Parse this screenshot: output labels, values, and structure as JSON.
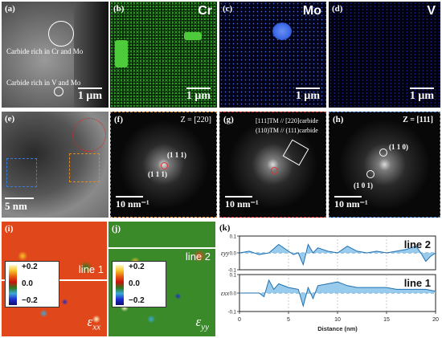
{
  "panels": {
    "a": {
      "label": "(a)",
      "carbide_cr_mo": "Carbide rich in Cr and Mo",
      "carbide_v_mo": "Carbide rich in V and Mo",
      "scalebar": "1 μm"
    },
    "b": {
      "label": "(b)",
      "element": "Cr",
      "scalebar": "1 μm",
      "color": "#2fa82a"
    },
    "c": {
      "label": "(c)",
      "element": "Mo",
      "scalebar": "1 μm",
      "color": "#3b68e8"
    },
    "d": {
      "label": "(d)",
      "element": "V",
      "scalebar": "1 μm",
      "color": "#1d2cd8"
    },
    "e": {
      "label": "(e)",
      "scalebar": "5 nm"
    },
    "f": {
      "label": "(f)",
      "zone": "Z = [220]",
      "spot1": "(1 1 1)",
      "spot2": "(1 1 1)",
      "scalebar": "10 nm⁻¹"
    },
    "g": {
      "label": "(g)",
      "rel1": "[111]TM // [220]carbide",
      "rel2": "(110)TM // (111)carbide",
      "scalebar": "10 nm⁻¹"
    },
    "h": {
      "label": "(h)",
      "zone": "Z = [111]",
      "spot1": "(1 1 0)",
      "spot2": "(1 0 1)",
      "scalebar": "10 nm⁻¹"
    },
    "i": {
      "label": "(i)",
      "line": "line 1",
      "cb_top": "+0.2",
      "cb_mid": "0.0",
      "cb_bot": "−0.2",
      "strain": "ε",
      "strain_sub": "xx"
    },
    "j": {
      "label": "(j)",
      "line": "line 2",
      "cb_top": "+0.2",
      "cb_mid": "0.0",
      "cb_bot": "−0.2",
      "strain": "ε",
      "strain_sub": "yy"
    },
    "k": {
      "label": "(k)"
    }
  },
  "chart_data": {
    "type": "area",
    "xlabel": "Distance (nm)",
    "xlim": [
      0,
      20
    ],
    "xticks": [
      "0",
      "5",
      "10",
      "15",
      "20"
    ],
    "subplots": [
      {
        "name": "line 2",
        "ylabel": "εyy",
        "ylim": [
          -0.1,
          0.1
        ],
        "yticks": [
          "0.1",
          "0.0",
          "-0.1"
        ],
        "x": [
          0,
          1,
          2,
          3,
          4,
          5,
          5.5,
          6,
          6.5,
          7,
          7.5,
          8,
          9,
          10,
          11,
          12,
          13,
          14,
          15,
          16,
          17,
          18,
          18.5,
          19,
          19.5,
          20
        ],
        "y": [
          0.0,
          0.01,
          -0.01,
          0.0,
          0.05,
          0.01,
          -0.01,
          0.0,
          -0.07,
          0.05,
          0.0,
          0.03,
          0.01,
          0.0,
          0.04,
          0.01,
          0.0,
          0.01,
          0.0,
          0.01,
          0.02,
          0.04,
          0.0,
          -0.05,
          -0.02,
          0.0
        ]
      },
      {
        "name": "line 1",
        "ylabel": "εxx",
        "ylim": [
          -0.1,
          0.1
        ],
        "yticks": [
          "0.1",
          "0.0",
          "-0.1"
        ],
        "x": [
          0,
          1,
          2,
          2.5,
          3,
          3.5,
          4,
          5,
          6,
          6.5,
          7,
          7.5,
          8,
          9,
          10,
          11,
          12,
          13,
          14,
          15,
          16,
          17,
          18,
          19,
          20
        ],
        "y": [
          0.0,
          0.0,
          0.0,
          -0.02,
          0.07,
          0.02,
          0.05,
          0.03,
          0.02,
          -0.07,
          0.03,
          -0.03,
          0.04,
          0.05,
          0.06,
          0.04,
          0.03,
          0.03,
          0.03,
          0.03,
          0.02,
          0.02,
          0.02,
          0.02,
          0.01
        ]
      }
    ],
    "fill_color": "#8ec6ea",
    "line_color": "#1f6fb0"
  }
}
